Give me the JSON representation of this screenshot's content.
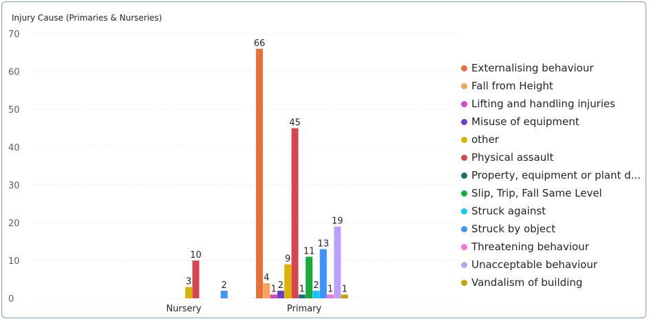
{
  "chart_data": {
    "type": "bar",
    "title": "Injury Cause (Primaries & Nurseries)",
    "categories": [
      "Nursery",
      "Primary"
    ],
    "ylim": [
      0,
      70
    ],
    "yticks": [
      0,
      10,
      20,
      30,
      40,
      50,
      60,
      70
    ],
    "grid": true,
    "legend_position": "right",
    "series": [
      {
        "name": "Externalising behaviour",
        "color": "#e8703a",
        "values": [
          null,
          66
        ]
      },
      {
        "name": "Fall from Height",
        "color": "#ffa35a",
        "values": [
          null,
          4
        ]
      },
      {
        "name": "Lifting and handling injuries",
        "color": "#d846c0",
        "values": [
          null,
          1
        ]
      },
      {
        "name": "Misuse of equipment",
        "color": "#6b3fc9",
        "values": [
          null,
          2
        ]
      },
      {
        "name": "other",
        "color": "#d9b300",
        "values": [
          3,
          9
        ]
      },
      {
        "name": "Physical assault",
        "color": "#d64550",
        "values": [
          10,
          45
        ]
      },
      {
        "name": "Property, equipment or plant d...",
        "color": "#1b6e75",
        "values": [
          null,
          1
        ]
      },
      {
        "name": "Slip, Trip, Fall Same Level",
        "color": "#1aab40",
        "values": [
          null,
          11
        ]
      },
      {
        "name": "Struck against",
        "color": "#15c6f4",
        "values": [
          null,
          2
        ]
      },
      {
        "name": "Struck by object",
        "color": "#4092ff",
        "values": [
          2,
          13
        ]
      },
      {
        "name": "Threatening behaviour",
        "color": "#f472d0",
        "values": [
          null,
          1
        ]
      },
      {
        "name": "Unacceptable behaviour",
        "color": "#bba0ff",
        "values": [
          null,
          19
        ]
      },
      {
        "name": "Vandalism of building",
        "color": "#c8a200",
        "values": [
          null,
          1
        ]
      }
    ]
  }
}
